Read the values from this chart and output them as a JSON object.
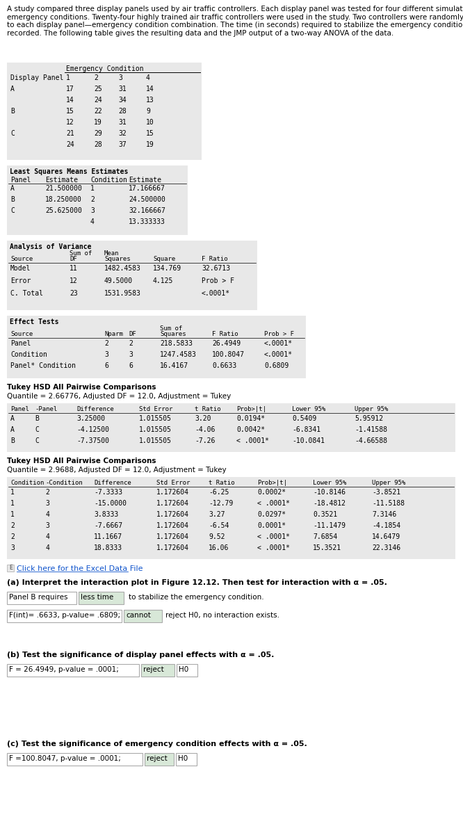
{
  "intro_text": "A study compared three display panels used by air traffic controllers. Each display panel was tested for four different simulated\nemergency conditions. Twenty-four highly trained air traffic controllers were used in the study. Two controllers were randomly assigned\nto each display panel—emergency condition combination. The time (in seconds) required to stabilize the emergency condition was\nrecorded. The following table gives the resulting data and the JMP output of a two-way ANOVA of the data.",
  "data_table": {
    "header_row1": [
      "",
      "Emergency Condition",
      "",
      "",
      ""
    ],
    "header_row2": [
      "Display Panel",
      "1",
      "2",
      "3",
      "4"
    ],
    "rows": [
      [
        "A",
        "17",
        "25",
        "31",
        "14"
      ],
      [
        "",
        "14",
        "24",
        "34",
        "13"
      ],
      [
        "B",
        "15",
        "22",
        "28",
        "9"
      ],
      [
        "",
        "12",
        "19",
        "31",
        "10"
      ],
      [
        "C",
        "21",
        "29",
        "32",
        "15"
      ],
      [
        "",
        "24",
        "28",
        "37",
        "19"
      ]
    ]
  },
  "ls_means": {
    "title": "Least Squares Means Estimates",
    "headers": [
      "Panel",
      "Estimate",
      "Condition",
      "Estimate"
    ],
    "rows": [
      [
        "A",
        "21.500000",
        "1",
        "17.166667"
      ],
      [
        "B",
        "18.250000",
        "2",
        "24.500000"
      ],
      [
        "C",
        "25.625000",
        "3",
        "32.166667"
      ],
      [
        "",
        "",
        "4",
        "13.333333"
      ]
    ]
  },
  "anova": {
    "title": "Analysis of Variance",
    "headers": [
      "Source",
      "DF",
      "Sum of\nSquares",
      "Mean\nSquare",
      "F Ratio"
    ],
    "rows": [
      [
        "Model",
        "11",
        "1482.4583",
        "134.769",
        "32.6713"
      ],
      [
        "Error",
        "12",
        "49.5000",
        "4.125",
        "Prob > F"
      ],
      [
        "C. Total",
        "23",
        "1531.9583",
        "",
        "<.0001*"
      ]
    ]
  },
  "effect_tests": {
    "title": "Effect Tests",
    "headers": [
      "Source",
      "Nparm",
      "DF",
      "Sum of\nSquares",
      "F Ratio",
      "Prob > F"
    ],
    "rows": [
      [
        "Panel",
        "2",
        "2",
        "218.5833",
        "26.4949",
        "<.0001*"
      ],
      [
        "Condition",
        "3",
        "3",
        "1247.4583",
        "100.8047",
        "<.0001*"
      ],
      [
        "Panel* Condition",
        "6",
        "6",
        "16.4167",
        "0.6633",
        "0.6809"
      ]
    ]
  },
  "tukey1": {
    "title": "Tukey HSD All Pairwise Comparisons",
    "quantile_line": "Quantile = 2.66776, Adjusted DF = 12.0, Adjustment = Tukey",
    "headers": [
      "Panel",
      "-Panel",
      "Difference",
      "Std Error",
      "t Ratio",
      "Prob>|t|",
      "Lower 95%",
      "Upper 95%"
    ],
    "rows": [
      [
        "A",
        "B",
        "3.25000",
        "1.015505",
        "3.20",
        "0.0194*",
        "0.5409",
        "5.95912"
      ],
      [
        "A",
        "C",
        "-4.12500",
        "1.015505",
        "-4.06",
        "0.0042*",
        "-6.8341",
        "-1.41588"
      ],
      [
        "B",
        "C",
        "-7.37500",
        "1.015505",
        "-7.26",
        "< .0001*",
        "-10.0841",
        "-4.66588"
      ]
    ]
  },
  "tukey2": {
    "title": "Tukey HSD All Pairwise Comparisons",
    "quantile_line": "Quantile = 2.9688, Adjusted DF = 12.0, Adjustment = Tukey",
    "headers": [
      "Condition",
      "-Condition",
      "Difference",
      "Std Error",
      "t Ratio",
      "Prob>|t|",
      "Lower 95%",
      "Upper 95%"
    ],
    "rows": [
      [
        "1",
        "2",
        "-7.3333",
        "1.172604",
        "-6.25",
        "0.0002*",
        "-10.8146",
        "-3.8521"
      ],
      [
        "1",
        "3",
        "-15.0000",
        "1.172604",
        "-12.79",
        "< .0001*",
        "-18.4812",
        "-11.5188"
      ],
      [
        "1",
        "4",
        "3.8333",
        "1.172604",
        "3.27",
        "0.0297*",
        "0.3521",
        "7.3146"
      ],
      [
        "2",
        "3",
        "-7.6667",
        "1.172604",
        "-6.54",
        "0.0001*",
        "-11.1479",
        "-4.1854"
      ],
      [
        "2",
        "4",
        "11.1667",
        "1.172604",
        "9.52",
        "< .0001*",
        "7.6854",
        "14.6479"
      ],
      [
        "3",
        "4",
        "18.8333",
        "1.172604",
        "16.06",
        "< .0001*",
        "15.3521",
        "22.3146"
      ]
    ]
  },
  "link_text": "Click here for the Excel Data File",
  "qa": {
    "a_label": "(a) Interpret the interaction plot in Figure 12.12. Then test for interaction with α = .05.",
    "a_box1": "Panel B requires",
    "a_box2": "less time",
    "a_text": "to stabilize the emergency condition.",
    "a_box3": "F(int)= .6633, p-value= .6809;",
    "a_box4": "cannot",
    "a_text2": "reject H0, no interaction exists.",
    "b_label": "(b) Test the significance of display panel effects with α = .05.",
    "b_box1": "F = 26.4949, p-value = .0001;",
    "b_box2": "reject",
    "b_box3": "H0",
    "c_label": "(c) Test the significance of emergency condition effects with α = .05.",
    "c_box1": "F =100.8047, p-value = .0001;",
    "c_box2": "reject",
    "c_box3": "H0"
  },
  "bg_color": "#f5f5f5",
  "table_bg": "#e8e8e8",
  "table_header_bg": "#d0d0d0",
  "white": "#ffffff"
}
